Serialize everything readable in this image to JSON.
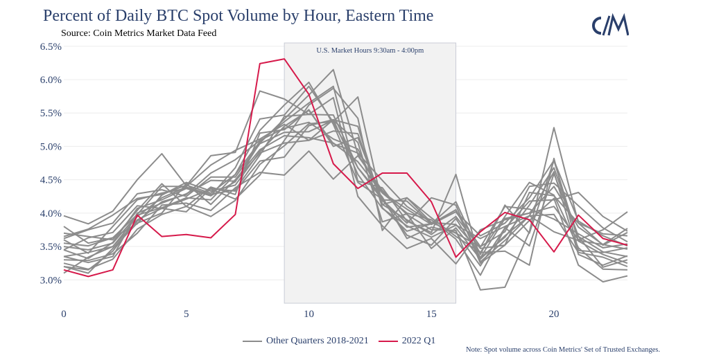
{
  "header": {
    "title": "Percent of Daily BTC Spot Volume by Hour, Eastern Time",
    "subtitle": "Source: Coin Metrics Market Data Feed"
  },
  "logo": {
    "text": "C/M",
    "icon": "coin-metrics-logo",
    "color": "#2a3f6b"
  },
  "annotation": {
    "market_hours": "U.S. Market Hours 9:30am - 4:00pm"
  },
  "footnote": "Note: Spot volume across Coin Metrics' Set of Trusted Exchanges.",
  "legend": {
    "other_label": "Other Quarters 2018-2021",
    "current_label": "2022 Q1"
  },
  "colors": {
    "other": "#8c8c8c",
    "current": "#d6194a",
    "text": "#2a3f6b",
    "shade": "#f2f2f2"
  },
  "chart_data": {
    "type": "line",
    "title": "Percent of Daily BTC Spot Volume by Hour, Eastern Time",
    "subtitle": "Source: Coin Metrics Market Data Feed",
    "xlabel": "",
    "ylabel": "",
    "x": [
      0,
      1,
      2,
      3,
      4,
      5,
      6,
      7,
      8,
      9,
      10,
      11,
      12,
      13,
      14,
      15,
      16,
      17,
      18,
      19,
      20,
      21,
      22,
      23
    ],
    "xlim": [
      0,
      23
    ],
    "ylim": [
      2.65,
      6.55
    ],
    "x_ticks": [
      "0",
      "5",
      "10",
      "15",
      "20"
    ],
    "x_tick_values": [
      0,
      5,
      10,
      15,
      20
    ],
    "y_ticks": [
      "3.0%",
      "3.5%",
      "4.0%",
      "4.5%",
      "5.0%",
      "5.5%",
      "6.0%",
      "6.5%"
    ],
    "y_tick_values": [
      3.0,
      3.5,
      4.0,
      4.5,
      5.0,
      5.5,
      6.0,
      6.5
    ],
    "shaded_region": {
      "x": [
        9,
        16
      ],
      "label": "U.S. Market Hours 9:30am - 4:00pm"
    },
    "grid": "horizontal",
    "legend_position": "bottom-center",
    "highlight_series": {
      "name": "2022 Q1",
      "values": [
        3.15,
        3.05,
        3.15,
        3.97,
        3.65,
        3.68,
        3.63,
        3.98,
        6.24,
        6.31,
        5.78,
        4.74,
        4.37,
        4.6,
        4.6,
        4.17,
        3.34,
        3.72,
        4.01,
        3.9,
        3.42,
        3.97,
        3.62,
        3.52
      ]
    },
    "other_series_name": "Other Quarters 2018-2021",
    "other_series": [
      [
        3.96,
        3.84,
        4.03,
        4.5,
        4.89,
        4.41,
        4.86,
        4.91,
        5.83,
        5.71,
        5.48,
        5.73,
        4.25,
        3.81,
        3.47,
        3.62,
        3.24,
        3.75,
        3.9,
        4.0,
        4.1,
        3.6,
        3.75,
        4.02
      ],
      [
        3.65,
        3.76,
        3.97,
        4.22,
        4.28,
        4.42,
        4.3,
        4.58,
        5.24,
        5.62,
        5.96,
        5.33,
        4.46,
        4.21,
        3.67,
        3.52,
        3.92,
        3.33,
        3.64,
        4.12,
        4.68,
        3.65,
        3.42,
        3.35
      ],
      [
        3.45,
        3.32,
        3.56,
        4.07,
        4.2,
        4.37,
        4.26,
        4.68,
        5.41,
        5.47,
        5.9,
        5.36,
        4.68,
        4.2,
        4.18,
        3.84,
        4.02,
        3.66,
        3.85,
        4.23,
        4.79,
        3.58,
        3.38,
        3.25
      ],
      [
        3.2,
        3.1,
        3.47,
        3.85,
        4.0,
        4.44,
        4.13,
        4.5,
        4.95,
        5.16,
        5.13,
        5.05,
        4.77,
        4.3,
        4.0,
        3.9,
        3.61,
        3.07,
        3.77,
        4.18,
        4.2,
        4.31,
        3.95,
        3.73
      ],
      [
        3.6,
        3.4,
        3.8,
        4.2,
        4.3,
        4.37,
        4.26,
        4.47,
        5.05,
        5.41,
        5.77,
        6.15,
        4.88,
        4.31,
        4.06,
        3.83,
        4.02,
        3.5,
        3.72,
        4.4,
        4.45,
        4.11,
        3.78,
        3.57
      ],
      [
        3.7,
        3.65,
        3.6,
        4.04,
        4.44,
        4.1,
        4.39,
        4.28,
        5.2,
        5.25,
        5.55,
        5.0,
        5.13,
        4.19,
        3.79,
        3.84,
        4.17,
        3.38,
        4.12,
        3.7,
        4.79,
        3.88,
        3.66,
        3.51
      ],
      [
        3.35,
        3.26,
        3.35,
        4.0,
        4.15,
        4.29,
        4.49,
        4.48,
        4.9,
        5.05,
        5.09,
        5.4,
        5.3,
        4.08,
        3.73,
        3.84,
        4.05,
        3.33,
        3.92,
        4.0,
        4.4,
        3.79,
        3.53,
        3.46
      ],
      [
        3.5,
        3.45,
        3.55,
        3.97,
        4.08,
        4.23,
        4.2,
        4.58,
        5.07,
        5.37,
        5.65,
        5.9,
        4.48,
        4.38,
        3.88,
        3.71,
        4.58,
        3.27,
        3.59,
        3.96,
        4.62,
        3.38,
        3.22,
        3.36
      ],
      [
        3.25,
        3.16,
        3.31,
        3.76,
        3.98,
        4.1,
        3.95,
        4.19,
        4.73,
        5.01,
        5.34,
        5.37,
        5.74,
        4.13,
        3.9,
        3.68,
        3.95,
        3.47,
        3.52,
        4.31,
        4.26,
        3.85,
        3.69,
        3.66
      ],
      [
        3.55,
        3.51,
        3.63,
        3.84,
        4.27,
        4.46,
        4.33,
        4.42,
        4.92,
        5.3,
        5.54,
        5.04,
        4.9,
        4.49,
        4.1,
        3.86,
        3.83,
        3.41,
        3.95,
        4.46,
        4.27,
        3.48,
        3.16,
        3.15
      ],
      [
        3.3,
        3.29,
        3.39,
        3.7,
        4.12,
        4.15,
        4.04,
        4.38,
        4.61,
        4.57,
        4.93,
        4.51,
        4.86,
        4.34,
        3.98,
        3.75,
        3.74,
        2.85,
        2.89,
        3.72,
        5.28,
        3.85,
        3.52,
        3.71
      ],
      [
        3.2,
        3.15,
        3.43,
        3.9,
        4.07,
        4.21,
        4.36,
        4.21,
        4.57,
        5.09,
        5.62,
        5.87,
        5.42,
        3.74,
        4.23,
        3.93,
        3.65,
        3.41,
        3.43,
        3.22,
        4.82,
        3.44,
        3.41,
        3.48
      ],
      [
        3.35,
        3.41,
        3.5,
        3.95,
        4.23,
        4.39,
        4.28,
        4.35,
        4.87,
        5.45,
        5.48,
        5.47,
        4.68,
        4.24,
        3.62,
        3.79,
        3.71,
        3.21,
        3.78,
        3.51,
        4.59,
        3.65,
        3.19,
        3.3
      ],
      [
        3.45,
        3.63,
        3.71,
        4.11,
        4.07,
        4.02,
        4.37,
        4.33,
        4.78,
        4.84,
        5.31,
        5.4,
        4.58,
        4.07,
        3.81,
        3.64,
        3.82,
        3.62,
        3.8,
        3.96,
        3.98,
        3.41,
        3.34,
        3.2
      ],
      [
        3.8,
        3.55,
        3.63,
        3.98,
        4.4,
        4.4,
        4.72,
        4.94,
        5.11,
        5.33,
        5.09,
        5.23,
        5.19,
        4.13,
        4.23,
        3.86,
        3.7,
        3.49,
        4.1,
        4.06,
        3.91,
        3.69,
        3.48,
        3.54
      ],
      [
        3.1,
        3.34,
        3.5,
        3.88,
        4.17,
        4.28,
        4.6,
        4.8,
        5.09,
        5.27,
        5.36,
        5.11,
        4.96,
        4.2,
        3.85,
        4.23,
        4.12,
        3.25,
        3.52,
        3.89,
        4.22,
        3.22,
        2.97,
        3.06
      ],
      [
        3.62,
        3.75,
        3.85,
        4.29,
        4.35,
        4.25,
        4.54,
        4.54,
        5.04,
        5.21,
        5.22,
        5.39,
        5.06,
        3.87,
        3.99,
        3.47,
        3.78,
        3.31,
        3.66,
        3.96,
        3.72,
        3.59,
        3.53,
        3.77
      ]
    ]
  }
}
